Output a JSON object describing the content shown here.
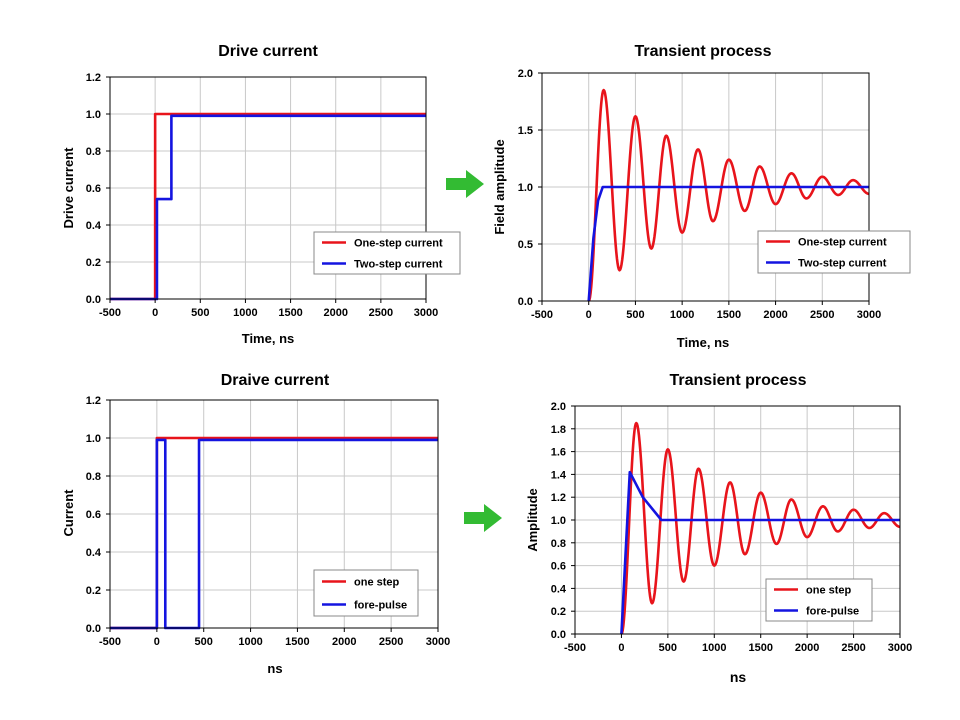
{
  "colors": {
    "series_red": "#e8141b",
    "series_blue": "#1414e0",
    "arrow": "#33bb33",
    "grid": "#c8c8c8"
  },
  "arrows": [
    {
      "name": "arrow-right-icon",
      "direction": "right"
    },
    {
      "name": "arrow-right-icon",
      "direction": "right"
    }
  ],
  "chart_data": [
    {
      "type": "line",
      "title": "Drive current",
      "xlabel": "Time, ns",
      "ylabel": "Drive current",
      "xlim": [
        -500,
        3000
      ],
      "ylim": [
        0,
        1.2
      ],
      "xticks": [
        -500,
        0,
        500,
        1000,
        1500,
        2000,
        2500,
        3000
      ],
      "yticks": [
        0.0,
        0.2,
        0.4,
        0.6,
        0.8,
        1.0,
        1.2
      ],
      "ytick_decimals": 1,
      "grid": true,
      "legend": "bottom-right",
      "series": [
        {
          "name": "One-step current",
          "color": "#e8141b",
          "x": [
            -500,
            0,
            0,
            3000
          ],
          "y": [
            0,
            0,
            1.0,
            1.0
          ]
        },
        {
          "name": "Two-step current",
          "color": "#1414e0",
          "x": [
            -500,
            20,
            20,
            180,
            180,
            3000
          ],
          "y": [
            0,
            0,
            0.54,
            0.54,
            0.99,
            0.99
          ]
        }
      ]
    },
    {
      "type": "line",
      "title": "Transient process",
      "xlabel": "Time, ns",
      "ylabel": "Field amplitude",
      "xlim": [
        -500,
        3000
      ],
      "ylim": [
        0,
        2.0
      ],
      "xticks": [
        -500,
        0,
        500,
        1000,
        1500,
        2000,
        2500,
        3000
      ],
      "yticks": [
        0.0,
        0.5,
        1.0,
        1.5,
        2.0
      ],
      "ytick_decimals": 1,
      "grid": true,
      "legend": "bottom-right",
      "series": [
        {
          "name": "One-step current",
          "color": "#e8141b",
          "x": [
            0,
            160,
            330,
            500,
            670,
            830,
            1000,
            1170,
            1330,
            1500,
            1670,
            1830,
            2000,
            2170,
            2330,
            2500,
            2670,
            2830,
            3000
          ],
          "y": [
            0.0,
            1.85,
            0.27,
            1.62,
            0.46,
            1.45,
            0.6,
            1.33,
            0.7,
            1.24,
            0.79,
            1.18,
            0.85,
            1.12,
            0.9,
            1.09,
            0.93,
            1.06,
            0.94
          ]
        },
        {
          "name": "Two-step current",
          "color": "#1414e0",
          "x": [
            0,
            50,
            100,
            150,
            3000
          ],
          "y": [
            0.0,
            0.55,
            0.88,
            1.0,
            1.0
          ]
        }
      ]
    },
    {
      "type": "line",
      "title": "Draive current",
      "xlabel": "ns",
      "ylabel": "Current",
      "xlim": [
        -500,
        3000
      ],
      "ylim": [
        0,
        1.2
      ],
      "xticks": [
        -500,
        0,
        500,
        1000,
        1500,
        2000,
        2500,
        3000
      ],
      "yticks": [
        0.0,
        0.2,
        0.4,
        0.6,
        0.8,
        1.0,
        1.2
      ],
      "ytick_decimals": 1,
      "grid": true,
      "legend": "bottom-right",
      "series": [
        {
          "name": "one step",
          "color": "#e8141b",
          "x": [
            -500,
            0,
            0,
            3000
          ],
          "y": [
            0,
            0,
            1.0,
            1.0
          ]
        },
        {
          "name": "fore-pulse",
          "color": "#1414e0",
          "x": [
            -500,
            0,
            0,
            90,
            90,
            450,
            450,
            3000
          ],
          "y": [
            0,
            0,
            0.99,
            0.99,
            0,
            0,
            0.99,
            0.99
          ]
        }
      ]
    },
    {
      "type": "line",
      "title": "Transient process",
      "xlabel": "ns",
      "ylabel": "Amplitude",
      "xlim": [
        -500,
        3000
      ],
      "ylim": [
        0,
        2.0
      ],
      "xticks": [
        -500,
        0,
        500,
        1000,
        1500,
        2000,
        2500,
        3000
      ],
      "yticks": [
        0.0,
        0.2,
        0.4,
        0.6,
        0.8,
        1.0,
        1.2,
        1.4,
        1.6,
        1.8,
        2.0
      ],
      "ytick_decimals": 1,
      "grid": true,
      "legend": "bottom-right",
      "series": [
        {
          "name": "one step",
          "color": "#e8141b",
          "x": [
            0,
            160,
            330,
            500,
            670,
            830,
            1000,
            1170,
            1330,
            1500,
            1670,
            1830,
            2000,
            2170,
            2330,
            2500,
            2670,
            2830,
            3000
          ],
          "y": [
            0.0,
            1.85,
            0.27,
            1.62,
            0.46,
            1.45,
            0.6,
            1.33,
            0.7,
            1.24,
            0.79,
            1.18,
            0.85,
            1.12,
            0.9,
            1.09,
            0.93,
            1.06,
            0.94
          ]
        },
        {
          "name": "fore-pulse",
          "color": "#1414e0",
          "x": [
            0,
            90,
            230,
            430,
            3000
          ],
          "y": [
            0.0,
            1.42,
            1.2,
            1.0,
            1.0
          ]
        }
      ]
    }
  ]
}
